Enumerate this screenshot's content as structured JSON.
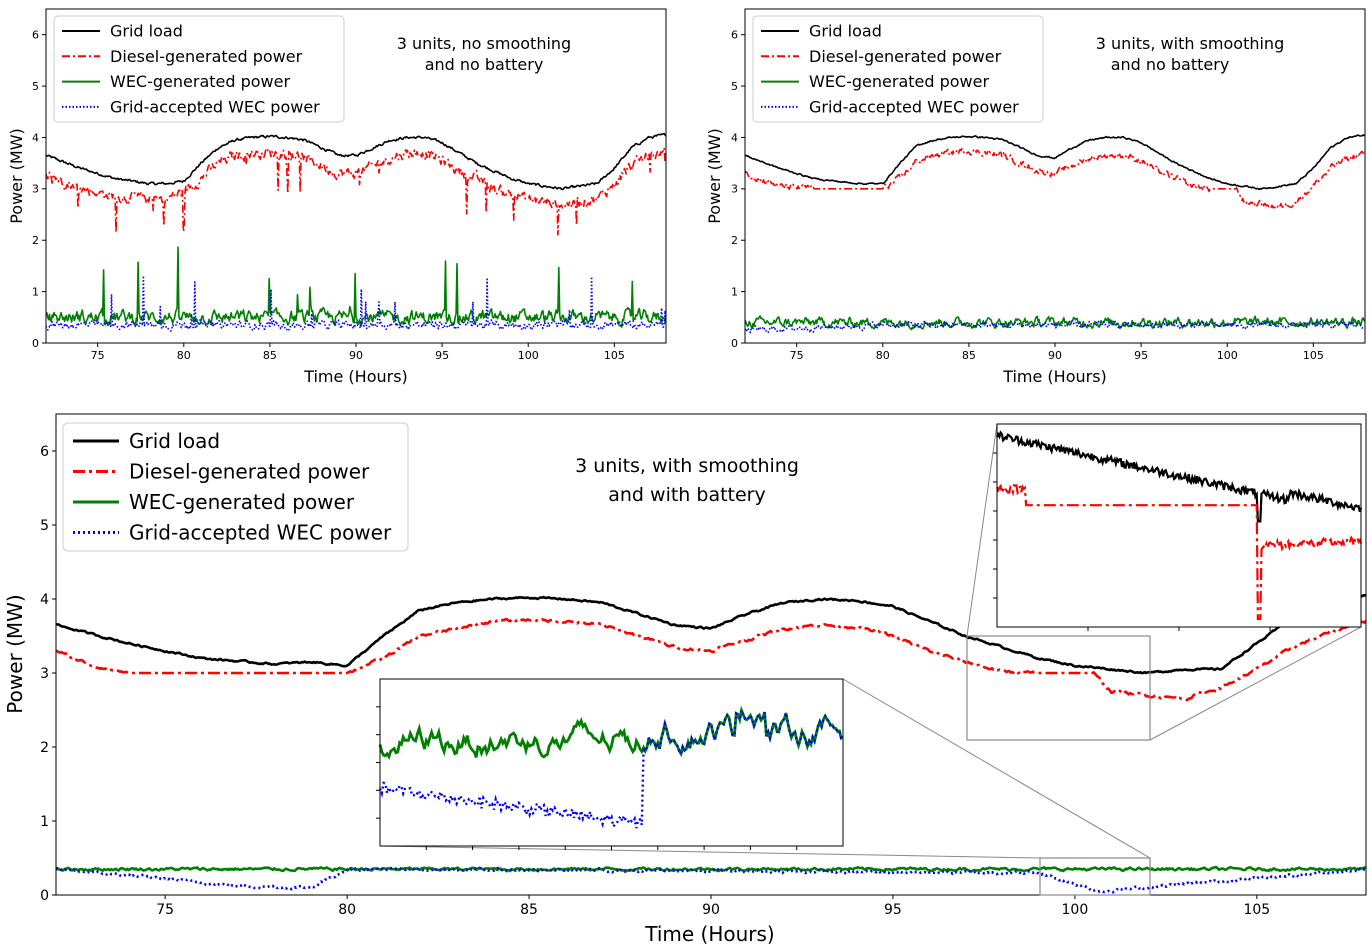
{
  "chart_data": [
    {
      "type": "line",
      "panel": "top-left",
      "annotation": [
        "3 units, no smoothing",
        "and no battery"
      ],
      "xlabel": "Time (Hours)",
      "ylabel": "Power (MW)",
      "xlim": [
        72,
        108
      ],
      "ylim": [
        0,
        6.5
      ],
      "xticks": [
        75,
        80,
        85,
        90,
        95,
        100,
        105
      ],
      "yticks": [
        0,
        1,
        2,
        3,
        4,
        5,
        6
      ],
      "legend_position": "top-left",
      "series": [
        {
          "name": "Grid load",
          "color": "#000000",
          "style": "solid",
          "x": [
            72,
            74,
            76,
            78,
            79,
            80,
            81,
            82,
            83,
            84,
            85,
            86,
            87,
            88,
            89,
            90,
            91,
            92,
            93,
            94,
            95,
            96,
            97,
            98,
            99,
            100,
            101,
            102,
            103,
            104,
            105,
            106,
            107,
            108
          ],
          "y": [
            3.65,
            3.4,
            3.2,
            3.1,
            3.1,
            3.15,
            3.5,
            3.8,
            3.95,
            4.0,
            4.02,
            4.0,
            3.95,
            3.8,
            3.65,
            3.65,
            3.8,
            3.95,
            4.0,
            4.0,
            3.9,
            3.7,
            3.5,
            3.35,
            3.2,
            3.1,
            3.05,
            3.0,
            3.05,
            3.1,
            3.4,
            3.8,
            4.0,
            4.05
          ]
        },
        {
          "name": "Diesel-generated power",
          "color": "#ff0000",
          "style": "dashdot",
          "x": [
            72,
            74,
            76,
            78,
            79,
            80,
            81,
            82,
            83,
            84,
            85,
            86,
            87,
            88,
            89,
            90,
            91,
            92,
            93,
            94,
            95,
            96,
            97,
            98,
            99,
            100,
            101,
            102,
            103,
            104,
            105,
            106,
            107,
            108
          ],
          "y": [
            3.3,
            3.0,
            2.85,
            2.8,
            2.8,
            2.95,
            3.2,
            3.5,
            3.65,
            3.7,
            3.7,
            3.7,
            3.6,
            3.45,
            3.3,
            3.3,
            3.45,
            3.6,
            3.7,
            3.7,
            3.55,
            3.35,
            3.2,
            3.0,
            2.9,
            2.8,
            2.75,
            2.7,
            2.75,
            2.8,
            3.1,
            3.45,
            3.65,
            3.7
          ]
        },
        {
          "name": "WEC-generated power",
          "color": "#008000",
          "style": "solid",
          "x": [
            72,
            108
          ],
          "y": [
            0.5,
            0.5
          ]
        },
        {
          "name": "Grid-accepted WEC power",
          "color": "#0000ff",
          "style": "dotted",
          "x": [
            72,
            108
          ],
          "y": [
            0.35,
            0.35
          ]
        }
      ]
    },
    {
      "type": "line",
      "panel": "top-right",
      "annotation": [
        "3 units, with smoothing",
        "and no battery"
      ],
      "xlabel": "Time (Hours)",
      "ylabel": "Power (MW)",
      "xlim": [
        72,
        108
      ],
      "ylim": [
        0,
        6.5
      ],
      "xticks": [
        75,
        80,
        85,
        90,
        95,
        100,
        105
      ],
      "yticks": [
        0,
        1,
        2,
        3,
        4,
        5,
        6
      ],
      "legend_position": "top-left",
      "series": [
        {
          "name": "Grid load",
          "color": "#000000",
          "style": "solid",
          "x": [
            72,
            74,
            76,
            78,
            79,
            80,
            81,
            82,
            83,
            84,
            85,
            86,
            87,
            88,
            89,
            90,
            91,
            92,
            93,
            94,
            95,
            96,
            97,
            98,
            99,
            100,
            101,
            102,
            103,
            104,
            105,
            106,
            107,
            108
          ],
          "y": [
            3.65,
            3.4,
            3.2,
            3.12,
            3.1,
            3.1,
            3.5,
            3.85,
            3.95,
            4.0,
            4.02,
            4.0,
            3.95,
            3.8,
            3.65,
            3.6,
            3.8,
            3.95,
            4.0,
            4.0,
            3.9,
            3.7,
            3.5,
            3.35,
            3.2,
            3.1,
            3.05,
            3.0,
            3.05,
            3.1,
            3.4,
            3.8,
            4.0,
            4.05
          ]
        },
        {
          "name": "Diesel-generated power",
          "color": "#ff0000",
          "style": "dashdot",
          "x": [
            72,
            74,
            76,
            78,
            79,
            80,
            81,
            82,
            83,
            84,
            85,
            86,
            87,
            88,
            89,
            90,
            91,
            92,
            93,
            94,
            95,
            96,
            97,
            98,
            99,
            100,
            100.5,
            101,
            102,
            103,
            104,
            105,
            106,
            107,
            108
          ],
          "y": [
            3.3,
            3.05,
            3.0,
            3.0,
            3.0,
            3.0,
            3.2,
            3.55,
            3.65,
            3.7,
            3.75,
            3.7,
            3.65,
            3.5,
            3.35,
            3.3,
            3.45,
            3.6,
            3.65,
            3.65,
            3.55,
            3.35,
            3.2,
            3.05,
            3.0,
            3.0,
            3.0,
            2.75,
            2.7,
            2.65,
            2.75,
            3.05,
            3.4,
            3.6,
            3.7
          ]
        },
        {
          "name": "WEC-generated power",
          "color": "#008000",
          "style": "solid",
          "x": [
            72,
            108
          ],
          "y": [
            0.4,
            0.4
          ]
        },
        {
          "name": "Grid-accepted WEC power",
          "color": "#0000ff",
          "style": "dotted",
          "x": [
            72,
            80,
            100.5,
            108
          ],
          "y": [
            0.25,
            0.35,
            0.35,
            0.35
          ]
        }
      ]
    },
    {
      "type": "line",
      "panel": "bottom",
      "annotation": [
        "3 units, with smoothing",
        "and with battery"
      ],
      "xlabel": "Time (Hours)",
      "ylabel": "Power (MW)",
      "xlim": [
        72,
        108
      ],
      "ylim": [
        0,
        6.5
      ],
      "xticks": [
        75,
        80,
        85,
        90,
        95,
        100,
        105
      ],
      "yticks": [
        0,
        1,
        2,
        3,
        4,
        5,
        6
      ],
      "legend_position": "top-left",
      "series": [
        {
          "name": "Grid load",
          "color": "#000000",
          "style": "solid",
          "x": [
            72,
            74,
            76,
            78,
            79,
            80,
            81,
            82,
            83,
            84,
            85,
            86,
            87,
            88,
            89,
            90,
            91,
            92,
            93,
            94,
            95,
            96,
            97,
            98,
            99,
            100,
            101,
            102,
            103,
            104,
            105,
            106,
            107,
            108
          ],
          "y": [
            3.65,
            3.4,
            3.2,
            3.12,
            3.15,
            3.1,
            3.5,
            3.85,
            3.95,
            4.0,
            4.02,
            4.0,
            3.95,
            3.8,
            3.65,
            3.6,
            3.8,
            3.95,
            4.0,
            3.98,
            3.9,
            3.7,
            3.5,
            3.35,
            3.2,
            3.1,
            3.05,
            3.0,
            3.05,
            3.05,
            3.4,
            3.75,
            3.95,
            4.05
          ]
        },
        {
          "name": "Diesel-generated power",
          "color": "#ff0000",
          "style": "dashdot",
          "x": [
            72,
            73,
            74,
            76,
            78,
            79,
            80,
            81,
            82,
            83,
            84,
            85,
            86,
            87,
            88,
            89,
            90,
            91,
            92,
            93,
            94,
            95,
            96,
            97,
            98,
            99,
            100,
            100.5,
            101,
            102,
            103,
            104,
            105,
            106,
            107,
            108
          ],
          "y": [
            3.3,
            3.1,
            3.0,
            3.0,
            3.0,
            3.0,
            3.0,
            3.2,
            3.5,
            3.6,
            3.7,
            3.72,
            3.7,
            3.65,
            3.5,
            3.35,
            3.3,
            3.45,
            3.6,
            3.65,
            3.62,
            3.5,
            3.3,
            3.15,
            3.02,
            3.0,
            3.0,
            3.0,
            2.75,
            2.7,
            2.65,
            2.8,
            3.05,
            3.35,
            3.55,
            3.7
          ]
        },
        {
          "name": "WEC-generated power",
          "color": "#008000",
          "style": "solid",
          "x": [
            72,
            108
          ],
          "y": [
            0.35,
            0.35
          ]
        },
        {
          "name": "Grid-accepted WEC power",
          "color": "#0000ff",
          "style": "dotted",
          "x": [
            72,
            75,
            77,
            79,
            80,
            99,
            100.7,
            108
          ],
          "y": [
            0.35,
            0.22,
            0.12,
            0.1,
            0.35,
            0.3,
            0.05,
            0.35
          ]
        }
      ]
    }
  ]
}
